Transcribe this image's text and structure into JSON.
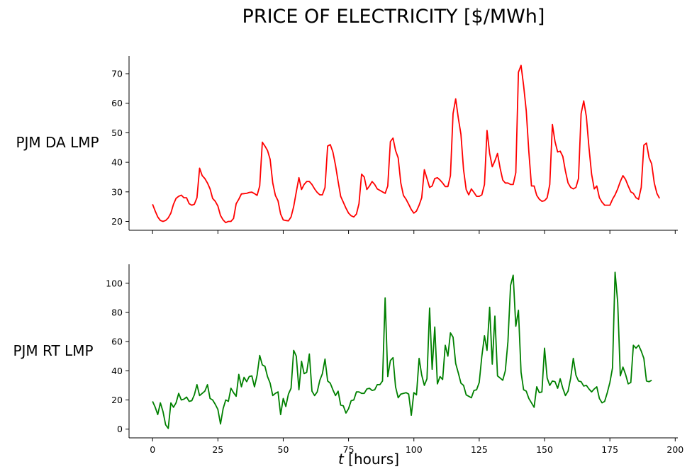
{
  "figure": {
    "title": "PRICE OF ELECTRICITY [$/MWh]",
    "xlabel_italic": "t",
    "xlabel_rest": " [hours]"
  },
  "chart_data": [
    {
      "type": "line",
      "ylabel": "PJM DA LMP",
      "xlim": [
        -9,
        201
      ],
      "ylim": [
        17,
        76
      ],
      "x_ticks": [
        0,
        25,
        50,
        75,
        100,
        125,
        150,
        175,
        200
      ],
      "x_ticklabels_shown": false,
      "y_ticks": [
        20,
        30,
        40,
        50,
        60,
        70
      ],
      "grid": false,
      "color": "#ff0000",
      "series": [
        {
          "values": [
            25.8,
            23.5,
            21.5,
            20.3,
            20.0,
            20.3,
            21.2,
            22.8,
            25.8,
            27.8,
            28.5,
            28.9,
            28.0,
            28.0,
            26.0,
            25.5,
            25.8,
            28.0,
            38.0,
            35.5,
            34.5,
            33.0,
            31.0,
            27.8,
            26.8,
            25.2,
            22.0,
            20.5,
            19.6,
            20.0,
            20.0,
            21.0,
            26.0,
            27.5,
            29.3,
            29.4,
            29.5,
            29.8,
            29.9,
            29.4,
            28.8,
            32.0,
            46.8,
            45.5,
            44.0,
            41.0,
            33.0,
            28.8,
            27.0,
            22.5,
            20.5,
            20.3,
            20.2,
            21.5,
            25.0,
            30.0,
            34.8,
            30.8,
            32.5,
            33.5,
            33.5,
            32.5,
            31.0,
            29.8,
            29.0,
            29.0,
            31.5,
            45.5,
            46.0,
            43.5,
            39.0,
            33.5,
            28.5,
            26.5,
            24.5,
            22.8,
            21.9,
            21.5,
            22.5,
            26.0,
            36.0,
            35.0,
            30.8,
            32.0,
            33.5,
            32.5,
            31.0,
            30.5,
            30.0,
            29.5,
            32.0,
            47.0,
            48.2,
            44.0,
            41.5,
            33.0,
            28.8,
            27.5,
            25.8,
            24.0,
            22.8,
            23.5,
            25.5,
            28.0,
            37.5,
            34.5,
            31.5,
            32.0,
            34.5,
            34.8,
            34.0,
            33.0,
            31.8,
            31.8,
            35.5,
            56.5,
            61.5,
            55.0,
            49.5,
            37.5,
            30.8,
            29.0,
            31.0,
            29.8,
            28.5,
            28.5,
            29.0,
            32.5,
            50.8,
            43.0,
            38.5,
            40.5,
            43.0,
            38.0,
            34.0,
            33.0,
            33.0,
            32.5,
            32.5,
            36.5,
            70.5,
            72.8,
            66.0,
            57.5,
            43.5,
            32.0,
            32.0,
            28.8,
            27.5,
            26.8,
            27.0,
            28.0,
            32.5,
            52.8,
            47.0,
            43.5,
            43.8,
            42.0,
            37.0,
            33.0,
            31.5,
            31.0,
            31.5,
            34.5,
            56.5,
            60.8,
            55.5,
            45.0,
            36.0,
            31.0,
            32.0,
            28.0,
            26.5,
            25.5,
            25.5,
            25.5,
            27.5,
            29.0,
            31.0,
            33.5,
            35.5,
            34.2,
            32.0,
            30.0,
            29.5,
            28.0,
            27.5,
            31.5,
            45.8,
            46.5,
            41.5,
            39.5,
            33.0,
            29.5,
            27.8
          ]
        }
      ]
    },
    {
      "type": "line",
      "ylabel": "PJM RT LMP",
      "xlim": [
        -9,
        201
      ],
      "ylim": [
        -6,
        113
      ],
      "x_ticks": [
        0,
        25,
        50,
        75,
        100,
        125,
        150,
        175,
        200
      ],
      "x_ticklabels": [
        "0",
        "25",
        "50",
        "75",
        "100",
        "125",
        "150",
        "175",
        "200"
      ],
      "y_ticks": [
        0,
        20,
        40,
        60,
        80,
        100
      ],
      "grid": false,
      "color": "#008000",
      "series": [
        {
          "values": [
            19,
            15,
            10,
            18,
            12,
            3,
            0.5,
            18,
            15,
            18,
            24.5,
            20,
            20.5,
            22,
            19,
            19.5,
            23.5,
            30.5,
            23,
            24.5,
            26,
            30.5,
            21,
            20,
            17,
            13.5,
            3.5,
            14,
            20,
            19,
            28,
            25,
            22.5,
            37.5,
            29,
            35.5,
            32.5,
            36,
            36.5,
            29,
            37,
            50.5,
            44,
            43,
            36,
            31.5,
            23,
            24.5,
            25.5,
            10,
            21,
            15.5,
            24,
            28,
            54,
            50,
            27,
            46.5,
            38,
            39,
            51.5,
            26,
            23,
            25.5,
            33.5,
            38,
            48,
            33,
            31.5,
            27,
            23,
            26,
            16.5,
            16,
            11,
            14,
            19.5,
            20,
            25.5,
            25.5,
            24.5,
            24.5,
            27.5,
            28,
            26.5,
            27,
            30.5,
            30.5,
            33,
            90,
            36,
            47,
            49,
            29,
            21.5,
            24,
            24.5,
            25,
            24,
            9.5,
            25,
            23.5,
            48.5,
            37,
            30,
            34.5,
            83,
            41,
            70,
            31,
            36,
            34,
            57.5,
            50,
            66,
            63,
            45,
            38.5,
            31.5,
            30,
            23.5,
            22.5,
            21.5,
            26.5,
            27,
            32,
            50,
            64,
            54,
            83.5,
            44.5,
            77.5,
            36.5,
            35,
            33.5,
            40,
            60,
            98.5,
            105.5,
            70.5,
            81.5,
            39,
            27,
            26,
            21,
            18,
            15,
            29,
            25,
            25.5,
            55.5,
            35,
            30,
            33,
            32.5,
            28,
            34.5,
            28,
            23,
            26,
            35,
            48.5,
            37,
            33,
            32.5,
            29.5,
            30,
            27.5,
            25.5,
            27.5,
            29,
            21,
            18,
            19,
            25,
            32,
            42,
            107.5,
            87,
            36.5,
            42.5,
            37.5,
            31,
            32,
            57.5,
            55.5,
            57.5,
            53.5,
            48.5,
            33,
            32.5,
            33.5
          ]
        }
      ]
    }
  ]
}
